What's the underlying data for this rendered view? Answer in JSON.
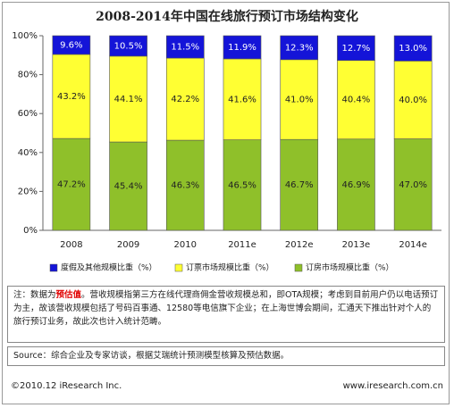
{
  "chart_data": {
    "type": "stacked_bar",
    "title": "2008-2014年中国在线旅行预订市场结构变化",
    "categories": [
      "2008",
      "2009",
      "2010",
      "2011e",
      "2012e",
      "2013e",
      "2014e"
    ],
    "series": [
      {
        "name": "度假及其他规模比重（%）",
        "color": "#1414d8",
        "values": [
          9.6,
          10.5,
          11.5,
          11.9,
          12.3,
          12.7,
          13.0
        ],
        "value_labels": [
          "9.6%",
          "10.5%",
          "11.5%",
          "11.9%",
          "12.3%",
          "12.7%",
          "13.0%"
        ]
      },
      {
        "name": "订票市场规模比重（%）",
        "color": "#ffff33",
        "values": [
          43.2,
          44.1,
          42.2,
          41.6,
          41.0,
          40.4,
          40.0
        ],
        "value_labels": [
          "43.2%",
          "44.1%",
          "42.2%",
          "41.6%",
          "41.0%",
          "40.4%",
          "40.0%"
        ]
      },
      {
        "name": "订房市场规模比重（%）",
        "color": "#8fc02a",
        "values": [
          47.2,
          45.4,
          46.3,
          46.5,
          46.7,
          46.9,
          47.0
        ],
        "value_labels": [
          "47.2%",
          "45.4%",
          "46.3%",
          "46.5%",
          "46.7%",
          "46.9%",
          "47.0%"
        ]
      }
    ],
    "ylim": [
      0,
      100
    ],
    "yticks": [
      {
        "value": 0,
        "label": "0%"
      },
      {
        "value": 20,
        "label": "20%"
      },
      {
        "value": 40,
        "label": "40%"
      },
      {
        "value": 60,
        "label": "60%"
      },
      {
        "value": 80,
        "label": "80%"
      },
      {
        "value": 100,
        "label": "100%"
      }
    ],
    "grid": false
  },
  "note": {
    "prefix": "注：数据为",
    "highlight": "预估值",
    "rest": "。营收规模指第三方在线代理商佣金营收规模总和，即OTA规模；考虑到目前用户仍以电话预订为主，故该营收规模包括了号码百事通、12580等电信旗下企业；在上海世博会期间，汇通天下推出针对个人的旅行预订业务，故此次也计入统计范畴。"
  },
  "source": "Source：综合企业及专家访谈，根据艾瑞统计预测模型核算及预估数据。",
  "footer": {
    "left": "©2010.12 iResearch Inc.",
    "right": "www.iresearch.com.cn"
  }
}
